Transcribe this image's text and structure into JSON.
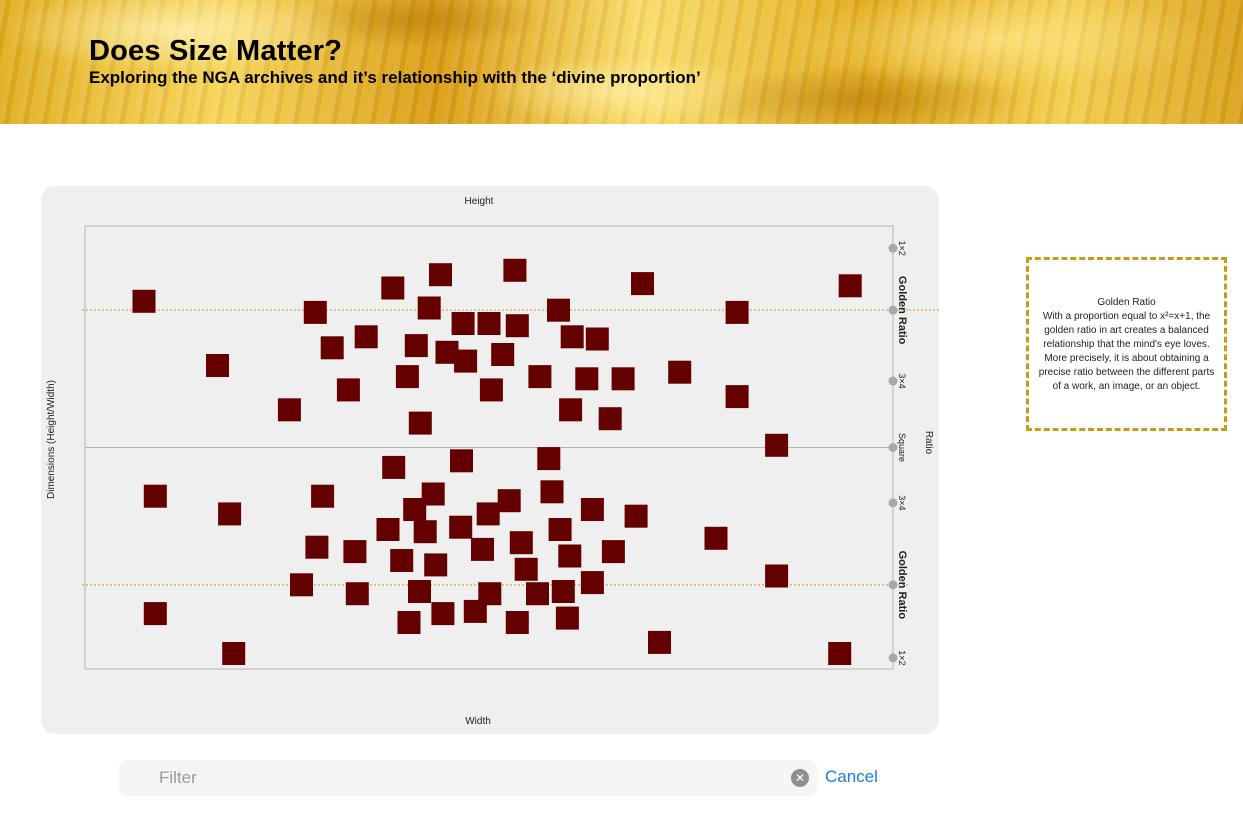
{
  "header": {
    "title": "Does Size Matter?",
    "subtitle": "Exploring the NGA archives and it’s relationship with the ‘divine proportion’"
  },
  "chart_data": {
    "type": "scatter",
    "title": "",
    "xlabel": "Width",
    "ylabel": "Dimensions (Height/Width)",
    "top_label": "Height",
    "right_label": "Ratio",
    "xlim": [
      0,
      1
    ],
    "ylim": [
      -1,
      1
    ],
    "grid": false,
    "ratio_ticks": [
      {
        "label": "1×2",
        "value": 0.9,
        "highlight": false
      },
      {
        "label": "Golden Ratio",
        "value": 0.62,
        "highlight": true
      },
      {
        "label": "3×4",
        "value": 0.3,
        "highlight": false
      },
      {
        "label": "Square",
        "value": 0.0,
        "highlight": false
      },
      {
        "label": "3×4",
        "value": -0.25,
        "highlight": false
      },
      {
        "label": "Golden Ratio",
        "value": -0.62,
        "highlight": true
      },
      {
        "label": "1×2",
        "value": -0.95,
        "highlight": false
      }
    ],
    "marker_color": "#640000",
    "accent_color": "#c9991b",
    "points": [
      {
        "x": 0.073,
        "y": 0.66
      },
      {
        "x": 0.164,
        "y": 0.37
      },
      {
        "x": 0.253,
        "y": 0.17
      },
      {
        "x": 0.285,
        "y": 0.61
      },
      {
        "x": 0.306,
        "y": 0.45
      },
      {
        "x": 0.326,
        "y": 0.26
      },
      {
        "x": 0.348,
        "y": 0.5
      },
      {
        "x": 0.381,
        "y": 0.72
      },
      {
        "x": 0.399,
        "y": 0.32
      },
      {
        "x": 0.41,
        "y": 0.46
      },
      {
        "x": 0.415,
        "y": 0.11
      },
      {
        "x": 0.426,
        "y": 0.63
      },
      {
        "x": 0.44,
        "y": 0.78
      },
      {
        "x": 0.448,
        "y": 0.43
      },
      {
        "x": 0.468,
        "y": 0.56
      },
      {
        "x": 0.471,
        "y": 0.39
      },
      {
        "x": 0.5,
        "y": 0.56
      },
      {
        "x": 0.503,
        "y": 0.26
      },
      {
        "x": 0.517,
        "y": 0.42
      },
      {
        "x": 0.532,
        "y": 0.8
      },
      {
        "x": 0.535,
        "y": 0.55
      },
      {
        "x": 0.563,
        "y": 0.32
      },
      {
        "x": 0.586,
        "y": 0.62
      },
      {
        "x": 0.603,
        "y": 0.5
      },
      {
        "x": 0.601,
        "y": 0.17
      },
      {
        "x": 0.621,
        "y": 0.31
      },
      {
        "x": 0.634,
        "y": 0.49
      },
      {
        "x": 0.65,
        "y": 0.13
      },
      {
        "x": 0.666,
        "y": 0.31
      },
      {
        "x": 0.69,
        "y": 0.74
      },
      {
        "x": 0.736,
        "y": 0.34
      },
      {
        "x": 0.807,
        "y": 0.61
      },
      {
        "x": 0.807,
        "y": 0.23
      },
      {
        "x": 0.856,
        "y": 0.01
      },
      {
        "x": 0.947,
        "y": 0.73
      },
      {
        "x": 0.087,
        "y": -0.22
      },
      {
        "x": 0.179,
        "y": -0.3
      },
      {
        "x": 0.268,
        "y": -0.62
      },
      {
        "x": 0.287,
        "y": -0.45
      },
      {
        "x": 0.294,
        "y": -0.22
      },
      {
        "x": 0.334,
        "y": -0.47
      },
      {
        "x": 0.337,
        "y": -0.66
      },
      {
        "x": 0.375,
        "y": -0.37
      },
      {
        "x": 0.382,
        "y": -0.09
      },
      {
        "x": 0.392,
        "y": -0.51
      },
      {
        "x": 0.401,
        "y": -0.79
      },
      {
        "x": 0.408,
        "y": -0.28
      },
      {
        "x": 0.414,
        "y": -0.65
      },
      {
        "x": 0.421,
        "y": -0.38
      },
      {
        "x": 0.431,
        "y": -0.21
      },
      {
        "x": 0.434,
        "y": -0.53
      },
      {
        "x": 0.443,
        "y": -0.75
      },
      {
        "x": 0.465,
        "y": -0.36
      },
      {
        "x": 0.466,
        "y": -0.06
      },
      {
        "x": 0.483,
        "y": -0.74
      },
      {
        "x": 0.492,
        "y": -0.46
      },
      {
        "x": 0.499,
        "y": -0.3
      },
      {
        "x": 0.501,
        "y": -0.66
      },
      {
        "x": 0.525,
        "y": -0.24
      },
      {
        "x": 0.535,
        "y": -0.79
      },
      {
        "x": 0.54,
        "y": -0.43
      },
      {
        "x": 0.546,
        "y": -0.55
      },
      {
        "x": 0.56,
        "y": -0.66
      },
      {
        "x": 0.574,
        "y": -0.05
      },
      {
        "x": 0.578,
        "y": -0.2
      },
      {
        "x": 0.588,
        "y": -0.37
      },
      {
        "x": 0.592,
        "y": -0.65
      },
      {
        "x": 0.597,
        "y": -0.77
      },
      {
        "x": 0.6,
        "y": -0.49
      },
      {
        "x": 0.628,
        "y": -0.61
      },
      {
        "x": 0.628,
        "y": -0.28
      },
      {
        "x": 0.654,
        "y": -0.47
      },
      {
        "x": 0.682,
        "y": -0.31
      },
      {
        "x": 0.711,
        "y": -0.88
      },
      {
        "x": 0.781,
        "y": -0.41
      },
      {
        "x": 0.856,
        "y": -0.58
      },
      {
        "x": 0.087,
        "y": -0.75
      },
      {
        "x": 0.184,
        "y": -0.93
      },
      {
        "x": 0.934,
        "y": -0.93
      }
    ]
  },
  "info": {
    "title": "Golden Ratio",
    "body": "With a proportion equal to x²=x+1, the golden ratio in art creates a balanced relationship that the mind's eye loves. More precisely, it is about obtaining a precise ratio between the different parts of a work, an image, or an object."
  },
  "filter": {
    "placeholder": "Filter",
    "value": "",
    "cancel_label": "Cancel"
  }
}
